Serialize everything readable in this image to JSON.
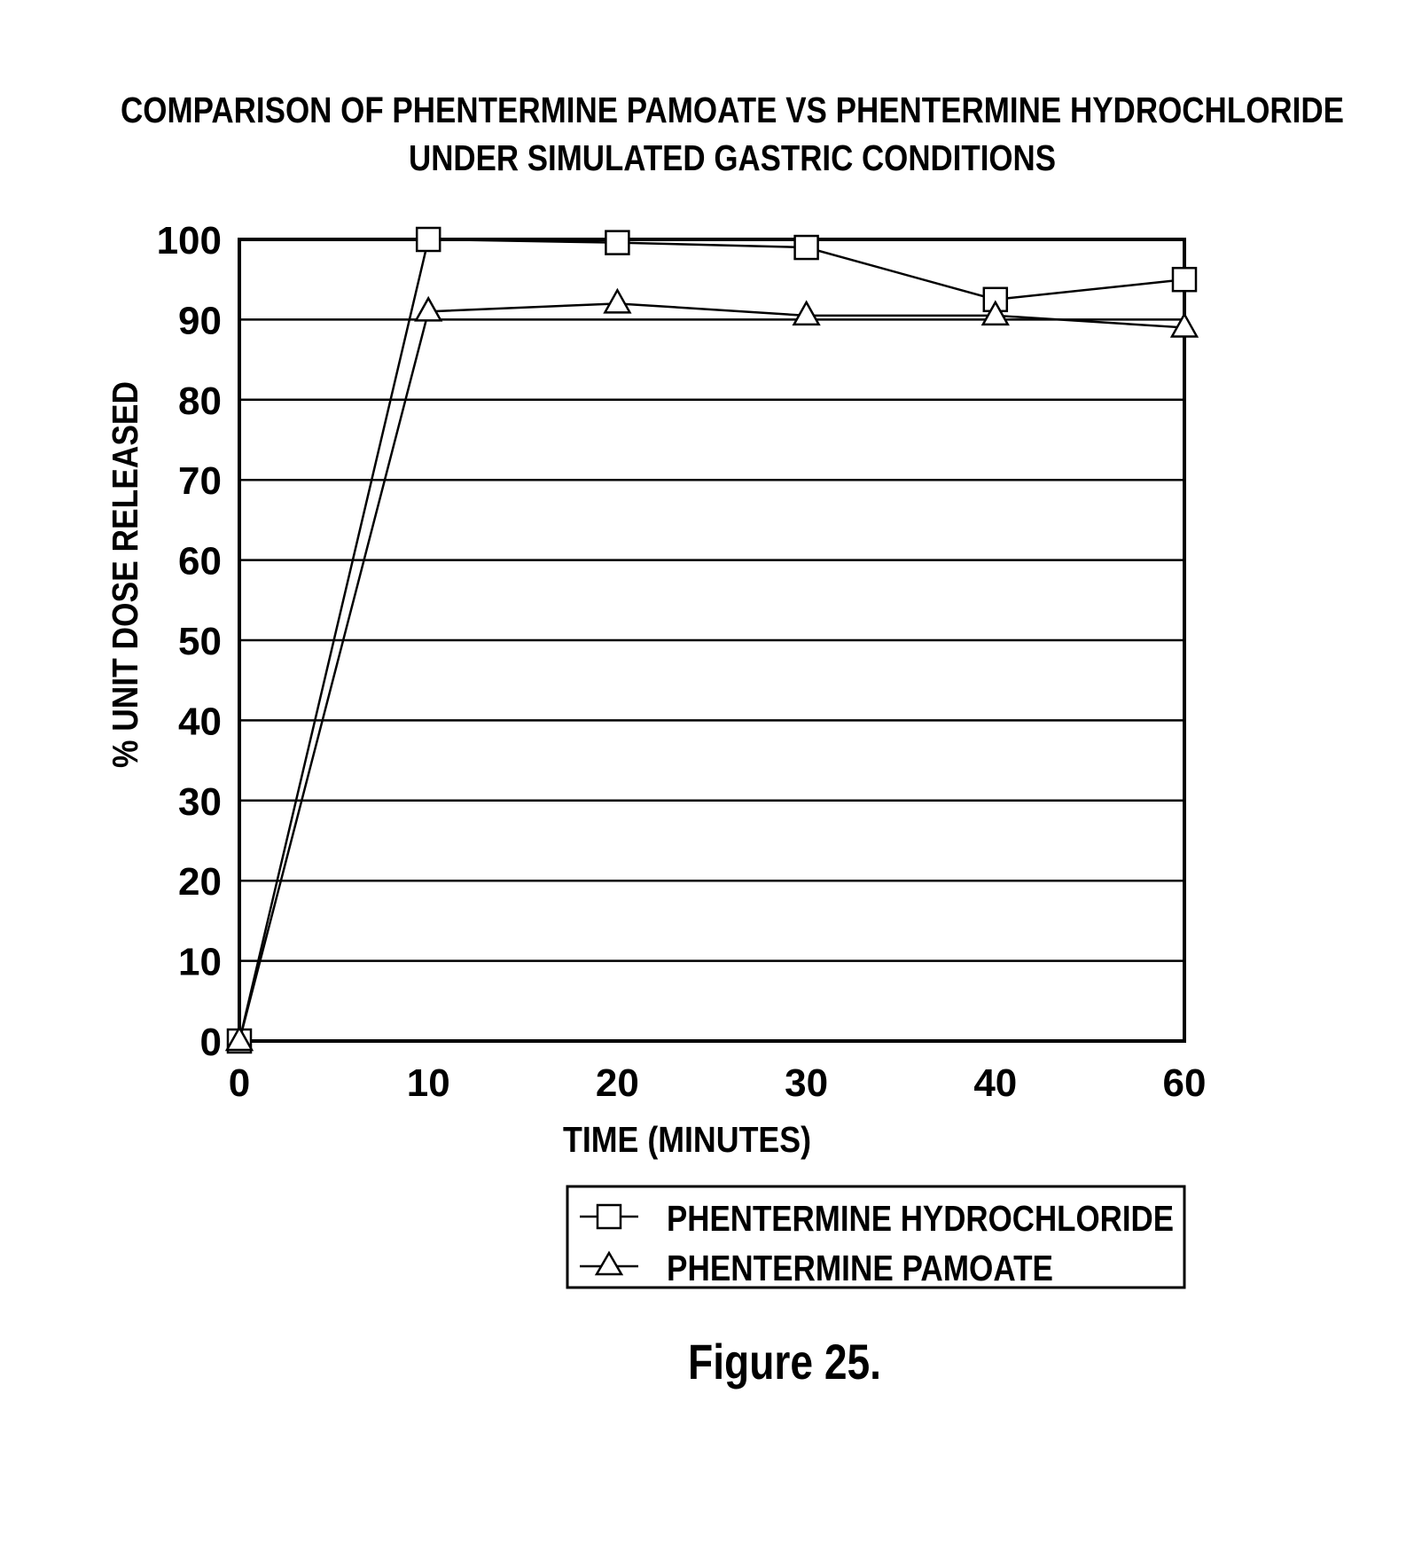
{
  "figure_label": "Figure 25.",
  "chart_data": {
    "type": "line",
    "title": "COMPARISON OF PHENTERMINE PAMOATE VS PHENTERMINE HYDROCHLORIDE",
    "subtitle": "UNDER SIMULATED GASTRIC CONDITIONS",
    "xlabel": "TIME (MINUTES)",
    "ylabel": "% UNIT DOSE RELEASED",
    "x": [
      "0",
      "10",
      "20",
      "30",
      "40",
      "60"
    ],
    "yticks": [
      "0",
      "10",
      "20",
      "30",
      "40",
      "50",
      "60",
      "70",
      "80",
      "90",
      "100"
    ],
    "ylim": [
      0,
      100
    ],
    "grid": true,
    "legend_position": "bottom-right, below plot",
    "series": [
      {
        "name": "PHENTERMINE HYDROCHLORIDE",
        "marker": "square",
        "values": [
          0,
          100,
          99.6,
          99,
          92.5,
          95
        ]
      },
      {
        "name": "PHENTERMINE PAMOATE",
        "marker": "triangle",
        "values": [
          0,
          91,
          92,
          90.5,
          90.5,
          89
        ]
      }
    ]
  }
}
